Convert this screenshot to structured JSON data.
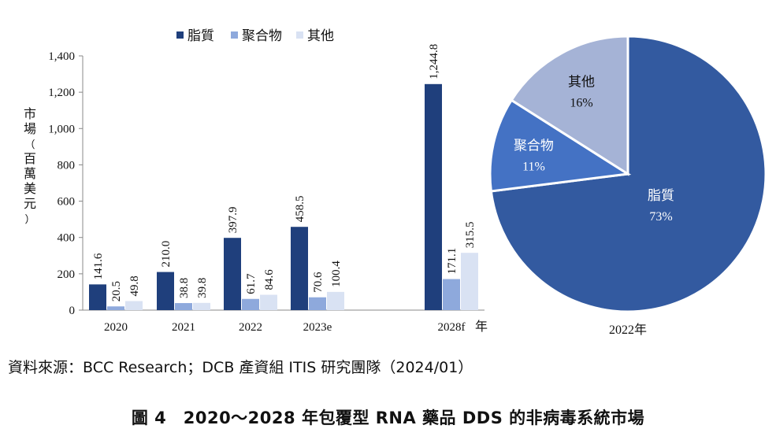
{
  "colors": {
    "lipid": "#1f3f7c",
    "polymer": "#8ea9dc",
    "other": "#d9e2f3",
    "pie_lipid": "#335aa0",
    "pie_polymer": "#4472c4",
    "pie_other": "#a5b3d6",
    "axis": "#888888"
  },
  "chart_data": [
    {
      "type": "bar",
      "categories": [
        "2020",
        "2021",
        "2022",
        "2023e",
        "2028f"
      ],
      "series": [
        {
          "name": "脂質",
          "values": [
            141.6,
            210.0,
            397.9,
            458.5,
            1244.8
          ],
          "labels": [
            "141.6",
            "210.0",
            "397.9",
            "458.5",
            "1,244.8"
          ]
        },
        {
          "name": "聚合物",
          "values": [
            20.5,
            38.8,
            61.7,
            70.6,
            171.1
          ],
          "labels": [
            "20.5",
            "38.8",
            "61.7",
            "70.6",
            "171.1"
          ]
        },
        {
          "name": "其他",
          "values": [
            49.8,
            39.8,
            84.6,
            100.4,
            315.5
          ],
          "labels": [
            "49.8",
            "39.8",
            "84.6",
            "100.4",
            "315.5"
          ]
        }
      ],
      "ylim": [
        0,
        1400
      ],
      "yticks": [
        0,
        200,
        400,
        600,
        800,
        1000,
        1200,
        1400
      ],
      "ytick_labels": [
        "0",
        "200",
        "400",
        "600",
        "800",
        "1,000",
        "1,200",
        "1,400"
      ],
      "ylabel": "市場（百萬美元）",
      "xlabel": "年",
      "legend": "top",
      "grid": false
    },
    {
      "type": "pie",
      "title": "2022年",
      "slices": [
        {
          "name": "脂質",
          "value": 73,
          "label": "73%"
        },
        {
          "name": "聚合物",
          "value": 11,
          "label": "11%"
        },
        {
          "name": "其他",
          "value": 16,
          "label": "16%"
        }
      ]
    }
  ],
  "source": "資料來源：BCC Research；DCB 產資組 ITIS 研究團隊（2024/01）",
  "caption": "圖 4　2020～2028 年包覆型 RNA 藥品 DDS 的非病毒系統市場"
}
